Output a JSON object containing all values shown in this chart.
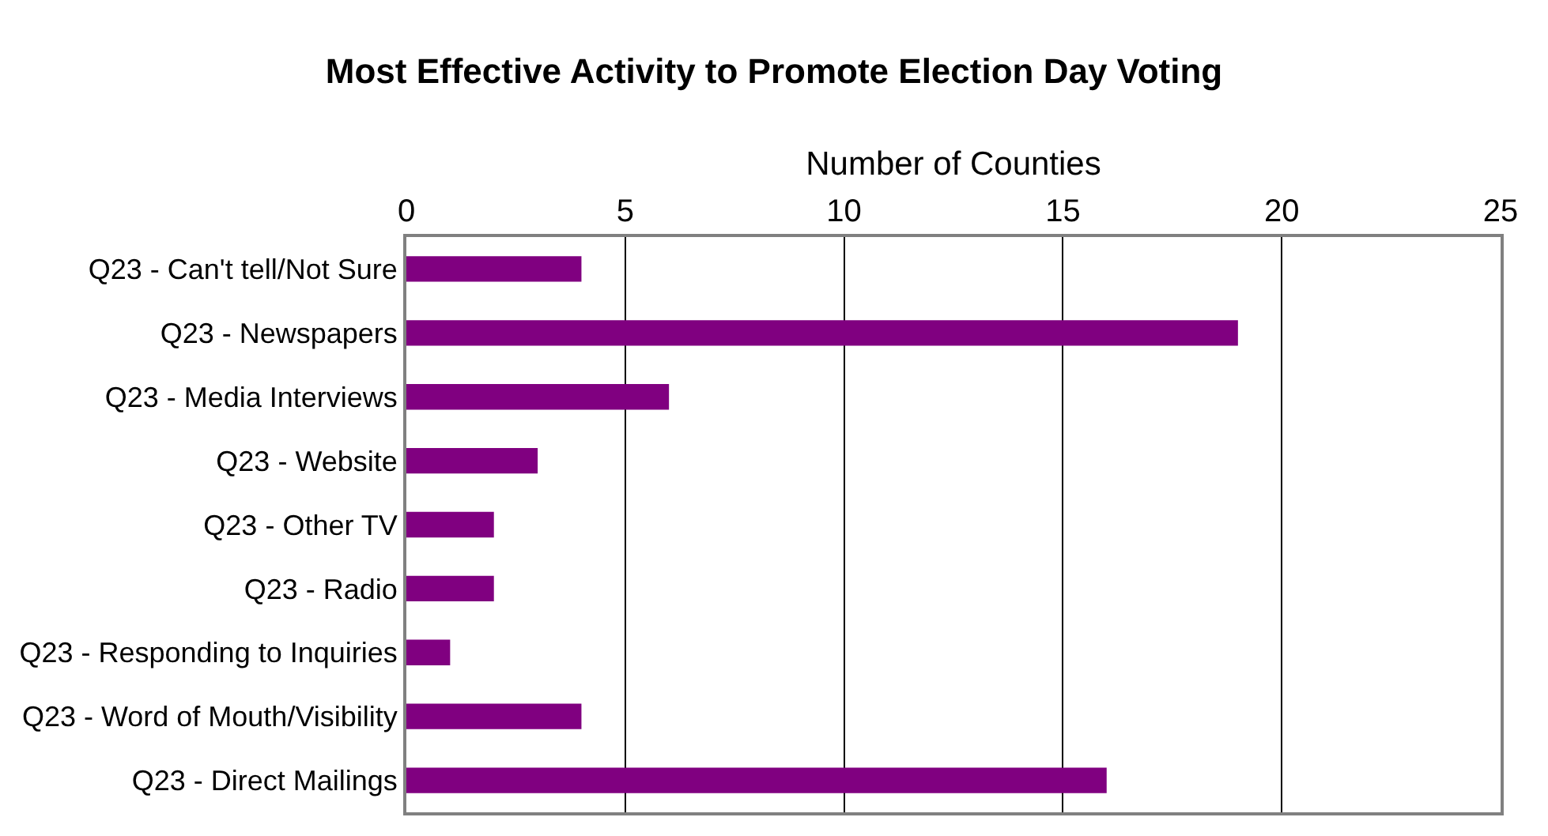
{
  "chart_data": {
    "type": "bar",
    "orientation": "horizontal",
    "title": "Most Effective Activity to Promote Election Day Voting",
    "xlabel": "Number of Counties",
    "categories": [
      "Q23 - Can't tell/Not Sure",
      "Q23 - Newspapers",
      "Q23 - Media Interviews",
      "Q23 - Website",
      "Q23 - Other TV",
      "Q23 - Radio",
      "Q23 - Responding to Inquiries",
      "Q23 - Word of Mouth/Visibility",
      "Q23 - Direct Mailings"
    ],
    "values": [
      4,
      19,
      6,
      3,
      2,
      2,
      1,
      4,
      16
    ],
    "color": "#800080",
    "xlim": [
      0,
      25
    ],
    "xticks": [
      0,
      5,
      10,
      15,
      20,
      25
    ],
    "grid": "x",
    "legend": false
  }
}
